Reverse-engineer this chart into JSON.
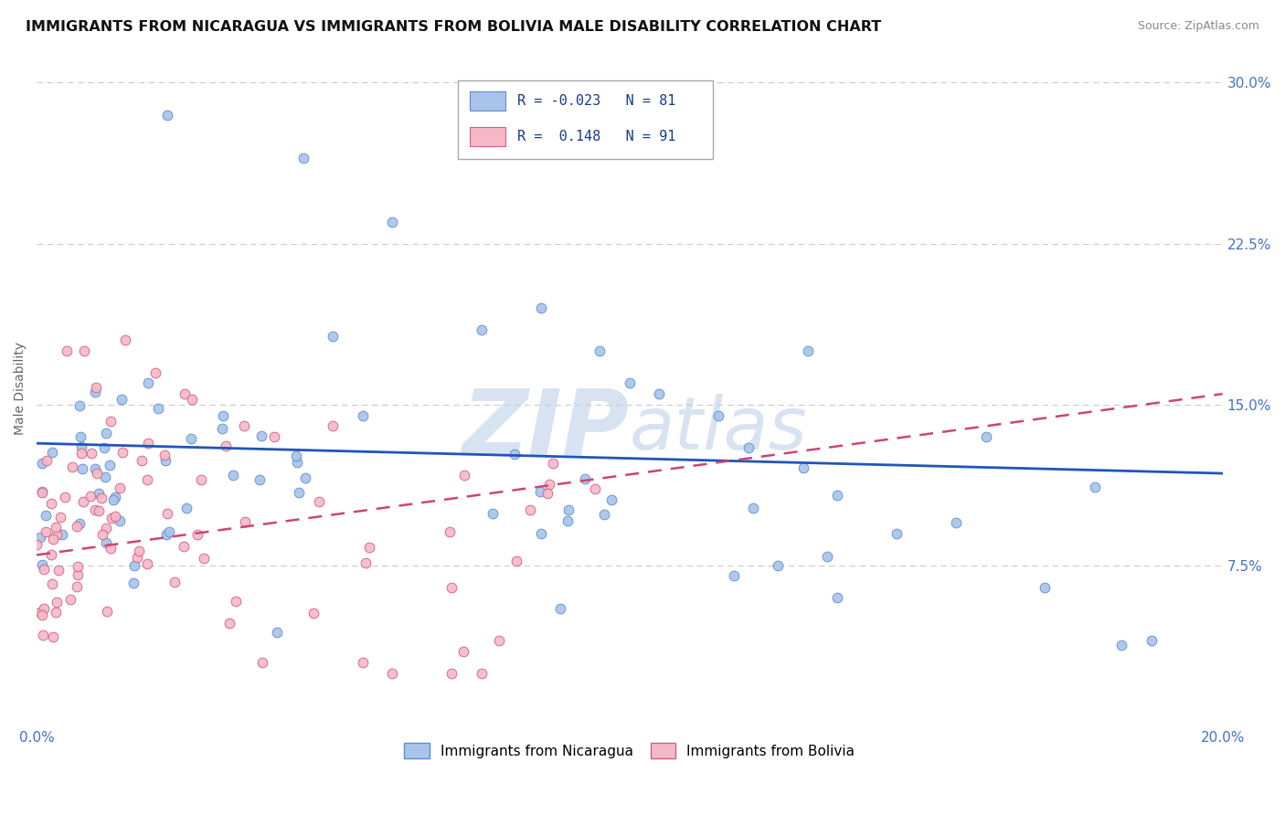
{
  "title": "IMMIGRANTS FROM NICARAGUA VS IMMIGRANTS FROM BOLIVIA MALE DISABILITY CORRELATION CHART",
  "source": "Source: ZipAtlas.com",
  "xlabel": "",
  "ylabel": "Male Disability",
  "xlim": [
    0.0,
    0.2
  ],
  "ylim": [
    0.0,
    0.315
  ],
  "xticks": [
    0.0,
    0.05,
    0.1,
    0.15,
    0.2
  ],
  "xtick_labels": [
    "0.0%",
    "",
    "",
    "",
    "20.0%"
  ],
  "yticks": [
    0.075,
    0.15,
    0.225,
    0.3
  ],
  "ytick_labels": [
    "7.5%",
    "15.0%",
    "22.5%",
    "30.0%"
  ],
  "series": [
    {
      "name": "Immigrants from Nicaragua",
      "R": -0.023,
      "N": 81,
      "dot_color": "#a8c4e8",
      "dot_edge": "#5b8dd9",
      "trend_color": "#2255bb",
      "trend_style": "solid"
    },
    {
      "name": "Immigrants from Bolivia",
      "R": 0.148,
      "N": 91,
      "dot_color": "#f5b8c8",
      "dot_edge": "#d06080",
      "trend_color": "#cc4477",
      "trend_style": "dashed"
    }
  ],
  "watermark": "ZIPatlas",
  "background_color": "#ffffff",
  "grid_color": "#cccccc",
  "title_color": "#111111",
  "axis_color": "#4472c4",
  "title_fontsize": 11.5,
  "label_fontsize": 10,
  "tick_fontsize": 11,
  "legend_fontsize": 11,
  "nic_trend": [
    0.132,
    0.118
  ],
  "bol_trend": [
    0.08,
    0.155
  ]
}
